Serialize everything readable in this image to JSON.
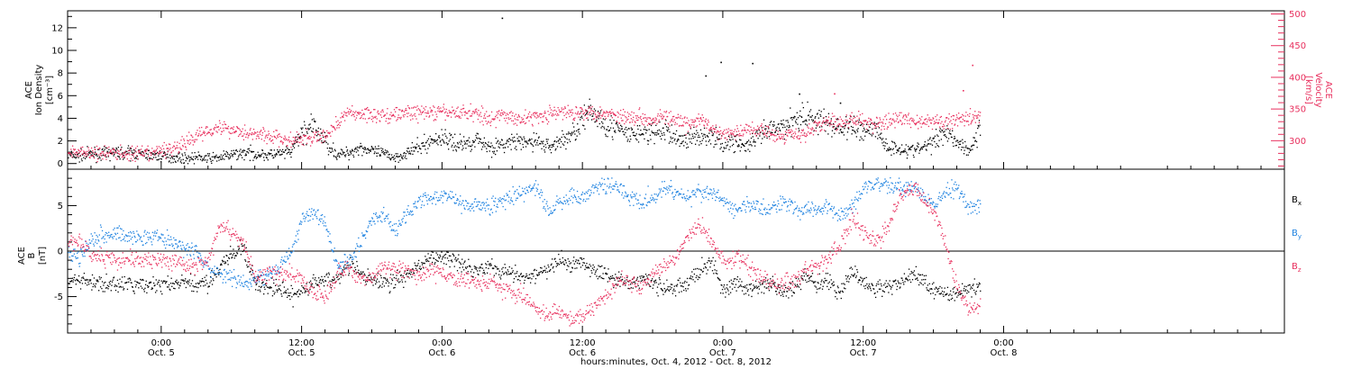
{
  "colors": {
    "black": "#000000",
    "pink": "#e8305e",
    "blue": "#1e82e0"
  },
  "xaxis": {
    "label": "hours:minutes, Oct.  4, 2012 - Oct.  8, 2012",
    "range_hours": [
      -8,
      96
    ],
    "ticks": [
      {
        "h": 0,
        "time": "0:00",
        "day": "Oct. 5"
      },
      {
        "h": 12,
        "time": "12:00",
        "day": "Oct. 5"
      },
      {
        "h": 24,
        "time": "0:00",
        "day": "Oct. 6"
      },
      {
        "h": 36,
        "time": "12:00",
        "day": "Oct. 6"
      },
      {
        "h": 48,
        "time": "0:00",
        "day": "Oct. 7"
      },
      {
        "h": 60,
        "time": "12:00",
        "day": "Oct. 7"
      },
      {
        "h": 72,
        "time": "0:00",
        "day": "Oct. 8"
      }
    ]
  },
  "chart_data": [
    {
      "type": "scatter",
      "panel": "top",
      "ylabel_left": [
        "ACE",
        "Ion Density",
        "[cm⁻³]"
      ],
      "ylabel_right": [
        "ACE",
        "Velocity",
        "[km/s]"
      ],
      "ylim_left": [
        -0.5,
        13.5
      ],
      "ylim_right": [
        255,
        505
      ],
      "yticks_left": [
        0,
        2,
        4,
        6,
        8,
        10,
        12
      ],
      "yticks_right": [
        300,
        350,
        400,
        450,
        500
      ],
      "series": [
        {
          "axis": "left",
          "color": "#000000",
          "x": [
            -8,
            -7,
            -6,
            -5,
            -4,
            -3,
            -2,
            -1,
            0,
            1,
            2,
            3,
            4,
            5,
            6,
            7,
            8,
            9,
            10,
            11,
            12,
            13,
            14,
            15,
            16,
            17,
            18,
            19,
            20,
            21,
            22,
            23,
            24,
            25,
            26,
            27,
            28,
            29,
            30,
            31,
            32,
            33,
            34,
            35,
            36,
            37,
            38,
            39,
            40,
            41,
            42,
            43,
            44,
            45,
            46,
            47,
            48,
            49,
            50,
            51,
            52,
            53,
            54,
            55,
            56,
            57,
            58,
            59,
            60,
            61,
            62,
            63,
            64,
            65,
            66,
            67,
            68,
            69,
            70
          ],
          "values": [
            0.8,
            0.7,
            0.9,
            0.9,
            1.0,
            1.0,
            0.9,
            0.8,
            0.7,
            0.6,
            0.5,
            0.6,
            0.5,
            0.6,
            0.8,
            1.0,
            0.9,
            0.8,
            0.9,
            1.0,
            2.8,
            3.3,
            2.0,
            0.8,
            1.0,
            1.5,
            1.1,
            0.9,
            0.6,
            1.0,
            1.5,
            2.0,
            2.4,
            1.8,
            1.8,
            2.2,
            1.5,
            1.6,
            2.0,
            1.8,
            2.1,
            1.5,
            2.0,
            2.5,
            4.0,
            4.5,
            3.5,
            3.0,
            2.5,
            2.8,
            2.6,
            3.0,
            2.2,
            2.2,
            2.6,
            2.4,
            1.8,
            2.0,
            1.5,
            2.4,
            3.0,
            3.2,
            4.0,
            4.2,
            4.0,
            3.5,
            3.2,
            3.2,
            3.0,
            3.2,
            1.5,
            1.4,
            1.2,
            1.4,
            2.0,
            3.0,
            2.0,
            1.2,
            3.0
          ]
        },
        {
          "axis": "right",
          "color": "#e8305e",
          "x": [
            -8,
            -7,
            -6,
            -5,
            -4,
            -3,
            -2,
            -1,
            0,
            1,
            2,
            3,
            4,
            5,
            6,
            7,
            8,
            9,
            10,
            11,
            12,
            13,
            14,
            15,
            16,
            17,
            18,
            19,
            20,
            21,
            22,
            23,
            24,
            25,
            26,
            27,
            28,
            29,
            30,
            31,
            32,
            33,
            34,
            35,
            36,
            37,
            38,
            39,
            40,
            41,
            42,
            43,
            44,
            45,
            46,
            47,
            48,
            49,
            50,
            51,
            52,
            53,
            54,
            55,
            56,
            57,
            58,
            59,
            60,
            61,
            62,
            63,
            64,
            65,
            66,
            67,
            68,
            69,
            70
          ],
          "values": [
            285,
            283,
            282,
            281,
            282,
            280,
            279,
            280,
            285,
            290,
            295,
            310,
            318,
            322,
            318,
            315,
            312,
            308,
            305,
            300,
            303,
            305,
            307,
            330,
            345,
            343,
            342,
            340,
            342,
            345,
            345,
            345,
            345,
            345,
            345,
            345,
            335,
            340,
            338,
            335,
            340,
            342,
            345,
            345,
            348,
            345,
            345,
            340,
            338,
            338,
            335,
            340,
            330,
            325,
            335,
            320,
            310,
            312,
            318,
            320,
            315,
            305,
            315,
            310,
            325,
            330,
            328,
            335,
            330,
            328,
            330,
            335,
            335,
            330,
            330,
            330,
            335,
            340,
            335
          ]
        },
        {
          "axis": "left",
          "color": "#000000",
          "outliers": true,
          "x": [
            29.1,
            46.5,
            47.8,
            50.5,
            54.5,
            58.0
          ],
          "values": [
            12.9,
            7.8,
            9.0,
            8.9,
            6.2,
            5.4
          ]
        },
        {
          "axis": "right",
          "color": "#e8305e",
          "outliers": true,
          "x": [
            69.3,
            68.5,
            57.5
          ],
          "values": [
            420,
            380,
            375
          ]
        }
      ]
    },
    {
      "type": "scatter",
      "panel": "bottom",
      "ylabel_left": [
        "ACE",
        "B",
        "[nT]"
      ],
      "ylim": [
        -9,
        9
      ],
      "yticks": [
        -5,
        0,
        5
      ],
      "zero_line": true,
      "legend_position": "right",
      "series": [
        {
          "name": "Bx",
          "label_main": "B",
          "label_sub": "x",
          "color": "#000000",
          "x": [
            -8,
            -7,
            -6,
            -5,
            -4,
            -3,
            -2,
            -1,
            0,
            1,
            2,
            3,
            4,
            5,
            6,
            7,
            8,
            9,
            10,
            11,
            12,
            13,
            14,
            15,
            16,
            17,
            18,
            19,
            20,
            21,
            22,
            23,
            24,
            25,
            26,
            27,
            28,
            29,
            30,
            31,
            32,
            33,
            34,
            35,
            36,
            37,
            38,
            39,
            40,
            41,
            42,
            43,
            44,
            45,
            46,
            47,
            48,
            49,
            50,
            51,
            52,
            53,
            54,
            55,
            56,
            57,
            58,
            59,
            60,
            61,
            62,
            63,
            64,
            65,
            66,
            67,
            68,
            69,
            70
          ],
          "values": [
            -3.2,
            -3.0,
            -3.5,
            -3.6,
            -3.6,
            -3.6,
            -3.7,
            -3.7,
            -3.6,
            -3.6,
            -3.5,
            -3.5,
            -3.5,
            -1.5,
            -0.5,
            0.5,
            -3.5,
            -4.0,
            -4.0,
            -4.8,
            -4.5,
            -3.5,
            -3.0,
            -3.0,
            -1.5,
            -2.5,
            -3.0,
            -3.5,
            -3.2,
            -2.5,
            -1.5,
            -1.0,
            -0.5,
            -0.8,
            -1.5,
            -2.0,
            -1.5,
            -2.0,
            -2.5,
            -3.0,
            -2.5,
            -2.0,
            -1.0,
            -1.5,
            -1.0,
            -2.0,
            -2.5,
            -3.0,
            -3.5,
            -3.0,
            -3.5,
            -4.0,
            -4.0,
            -3.5,
            -2.0,
            -1.0,
            -4.5,
            -3.5,
            -4.0,
            -4.0,
            -3.5,
            -4.5,
            -4.0,
            -2.5,
            -3.5,
            -3.5,
            -4.5,
            -2.0,
            -3.5,
            -4.0,
            -4.0,
            -3.5,
            -2.5,
            -3.0,
            -4.5,
            -4.5,
            -4.5,
            -4.0,
            -3.5
          ]
        },
        {
          "name": "By",
          "label_main": "B",
          "label_sub": "y",
          "color": "#1e82e0",
          "x": [
            -8,
            -7,
            -6,
            -5,
            -4,
            -3,
            -2,
            -1,
            0,
            1,
            2,
            3,
            4,
            5,
            6,
            7,
            8,
            9,
            10,
            11,
            12,
            13,
            14,
            15,
            16,
            17,
            18,
            19,
            20,
            21,
            22,
            23,
            24,
            25,
            26,
            27,
            28,
            29,
            30,
            31,
            32,
            33,
            34,
            35,
            36,
            37,
            38,
            39,
            40,
            41,
            42,
            43,
            44,
            45,
            46,
            47,
            48,
            49,
            50,
            51,
            52,
            53,
            54,
            55,
            56,
            57,
            58,
            59,
            60,
            61,
            62,
            63,
            64,
            65,
            66,
            67,
            68,
            69,
            70
          ],
          "values": [
            -0.3,
            -0.5,
            1.5,
            1.8,
            1.9,
            1.8,
            1.7,
            1.6,
            1.5,
            1.0,
            0.5,
            0.0,
            -2.0,
            -2.5,
            -3.0,
            -3.5,
            -3.0,
            -2.5,
            -2.0,
            0.0,
            3.5,
            4.5,
            3.0,
            -1.5,
            -1.0,
            1.0,
            3.5,
            4.0,
            2.5,
            4.0,
            5.5,
            6.0,
            6.0,
            6.0,
            5.0,
            5.0,
            5.0,
            5.5,
            6.0,
            6.5,
            7.0,
            4.5,
            5.5,
            6.0,
            6.0,
            7.0,
            7.5,
            7.0,
            6.0,
            5.5,
            6.0,
            7.0,
            6.5,
            6.0,
            6.5,
            6.5,
            5.5,
            4.5,
            5.0,
            5.0,
            4.5,
            5.5,
            5.0,
            4.5,
            4.5,
            5.0,
            4.0,
            5.0,
            7.0,
            7.5,
            7.5,
            7.0,
            7.0,
            6.5,
            5.0,
            6.5,
            7.0,
            5.0,
            5.0
          ]
        },
        {
          "name": "Bz",
          "label_main": "B",
          "label_sub": "z",
          "color": "#e8305e",
          "x": [
            -8,
            -7,
            -6,
            -5,
            -4,
            -3,
            -2,
            -1,
            0,
            1,
            2,
            3,
            4,
            5,
            6,
            7,
            8,
            9,
            10,
            11,
            12,
            13,
            14,
            15,
            16,
            17,
            18,
            19,
            20,
            21,
            22,
            23,
            24,
            25,
            26,
            27,
            28,
            29,
            30,
            31,
            32,
            33,
            34,
            35,
            36,
            37,
            38,
            39,
            40,
            41,
            42,
            43,
            44,
            45,
            46,
            47,
            48,
            49,
            50,
            51,
            52,
            53,
            54,
            55,
            56,
            57,
            58,
            59,
            60,
            61,
            62,
            63,
            64,
            65,
            66,
            67,
            68,
            69,
            70
          ],
          "values": [
            1.0,
            1.2,
            -0.5,
            -0.5,
            -0.8,
            -0.8,
            -0.8,
            -1.0,
            -1.0,
            -1.2,
            -1.5,
            -1.5,
            -1.0,
            3.0,
            2.0,
            1.0,
            -3.0,
            -2.5,
            -2.5,
            -2.5,
            -3.0,
            -4.5,
            -5.0,
            -2.5,
            -1.5,
            -3.0,
            -3.0,
            -1.5,
            -2.0,
            -2.0,
            -3.0,
            -2.0,
            -2.5,
            -3.0,
            -3.0,
            -3.5,
            -3.0,
            -4.0,
            -4.5,
            -5.0,
            -6.5,
            -7.0,
            -6.5,
            -7.5,
            -7.0,
            -6.0,
            -5.0,
            -3.0,
            -3.5,
            -4.0,
            -2.5,
            -1.5,
            -1.0,
            2.0,
            3.0,
            1.0,
            -1.0,
            -0.5,
            -1.5,
            -2.5,
            -3.5,
            -3.5,
            -3.0,
            -2.0,
            -1.5,
            -0.5,
            0.5,
            3.5,
            2.5,
            1.0,
            2.5,
            6.0,
            7.0,
            6.0,
            4.5,
            1.0,
            -4.0,
            -6.5,
            -6.0
          ]
        }
      ]
    }
  ]
}
